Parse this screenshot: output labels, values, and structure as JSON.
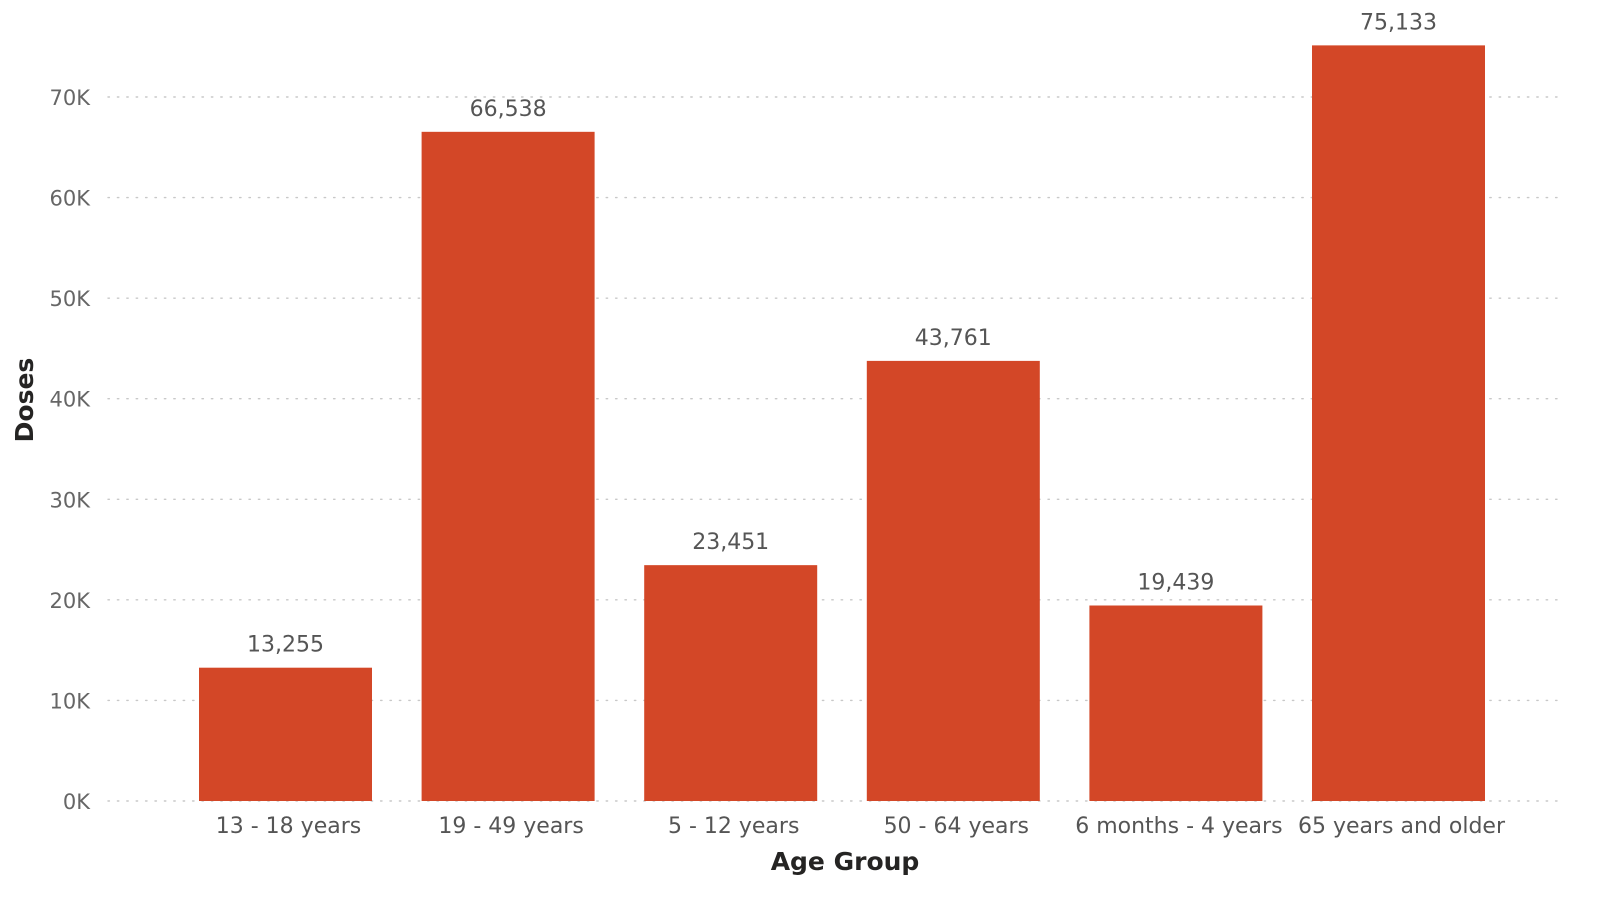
{
  "chart_data": {
    "type": "bar",
    "categories": [
      "13 - 18 years",
      "19 - 49 years",
      "5 - 12 years",
      "50 - 64 years",
      "6 months - 4 years",
      "65 years and older"
    ],
    "values": [
      13255,
      66538,
      23451,
      43761,
      19439,
      75133
    ],
    "data_labels": [
      "13,255",
      "66,538",
      "23,451",
      "43,761",
      "19,439",
      "75,133"
    ],
    "xlabel": "Age Group",
    "ylabel": "Doses",
    "ylim": [
      0,
      80000
    ],
    "yticks": [
      0,
      10000,
      20000,
      30000,
      40000,
      50000,
      60000,
      70000
    ],
    "ytick_labels": [
      "0K",
      "10K",
      "20K",
      "30K",
      "40K",
      "50K",
      "60K",
      "70K"
    ],
    "bar_color": "#D34727",
    "grid": true,
    "grid_style": "dotted",
    "legend": "none"
  }
}
